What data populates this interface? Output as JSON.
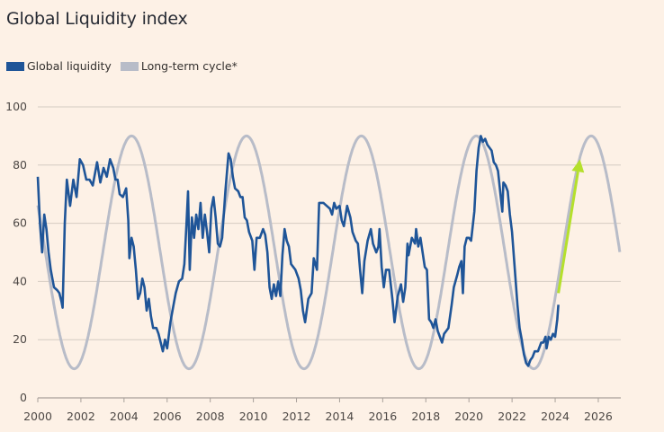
{
  "chart_data": {
    "type": "line",
    "title": "Global Liquidity index",
    "xlabel": "",
    "ylabel": "",
    "xlim": [
      2000,
      2027
    ],
    "ylim": [
      0,
      100
    ],
    "grid": true,
    "legend_position": "top-left",
    "x_ticks": [
      "2000",
      "2002",
      "2004",
      "2006",
      "2008",
      "2010",
      "2012",
      "2014",
      "2016",
      "2018",
      "2020",
      "2022",
      "2024",
      "2026"
    ],
    "y_ticks": [
      "0",
      "20",
      "40",
      "60",
      "80",
      "100"
    ],
    "colors": {
      "liquidity": "#1f5598",
      "cycle": "#b8bcc8",
      "arrow": "#b5e02c",
      "grid": "#d4cbc2",
      "axis": "#a8a09a"
    },
    "series": [
      {
        "name": "Global liquidity",
        "points": [
          [
            2000.0,
            76
          ],
          [
            2000.1,
            60
          ],
          [
            2000.2,
            50
          ],
          [
            2000.3,
            63
          ],
          [
            2000.4,
            58
          ],
          [
            2000.5,
            50
          ],
          [
            2000.6,
            44
          ],
          [
            2000.75,
            38
          ],
          [
            2000.9,
            37
          ],
          [
            2001.0,
            36
          ],
          [
            2001.1,
            33
          ],
          [
            2001.15,
            31
          ],
          [
            2001.25,
            60
          ],
          [
            2001.35,
            75
          ],
          [
            2001.5,
            66
          ],
          [
            2001.65,
            75
          ],
          [
            2001.8,
            69
          ],
          [
            2001.95,
            82
          ],
          [
            2002.1,
            80
          ],
          [
            2002.25,
            75
          ],
          [
            2002.4,
            75
          ],
          [
            2002.55,
            73
          ],
          [
            2002.75,
            81
          ],
          [
            2002.9,
            74
          ],
          [
            2003.05,
            79
          ],
          [
            2003.2,
            76
          ],
          [
            2003.35,
            82
          ],
          [
            2003.5,
            79
          ],
          [
            2003.6,
            75
          ],
          [
            2003.7,
            75
          ],
          [
            2003.8,
            70
          ],
          [
            2003.95,
            69
          ],
          [
            2004.1,
            72
          ],
          [
            2004.2,
            61
          ],
          [
            2004.25,
            48
          ],
          [
            2004.35,
            55
          ],
          [
            2004.45,
            52
          ],
          [
            2004.55,
            44
          ],
          [
            2004.65,
            34
          ],
          [
            2004.75,
            36
          ],
          [
            2004.85,
            41
          ],
          [
            2004.95,
            38
          ],
          [
            2005.05,
            30
          ],
          [
            2005.15,
            34
          ],
          [
            2005.25,
            28
          ],
          [
            2005.35,
            24
          ],
          [
            2005.5,
            24
          ],
          [
            2005.6,
            22
          ],
          [
            2005.7,
            19
          ],
          [
            2005.8,
            16
          ],
          [
            2005.9,
            20
          ],
          [
            2006.0,
            17
          ],
          [
            2006.15,
            26
          ],
          [
            2006.3,
            32
          ],
          [
            2006.4,
            36
          ],
          [
            2006.55,
            40
          ],
          [
            2006.7,
            41
          ],
          [
            2006.8,
            46
          ],
          [
            2006.9,
            60
          ],
          [
            2006.97,
            71
          ],
          [
            2007.05,
            44
          ],
          [
            2007.15,
            62
          ],
          [
            2007.25,
            55
          ],
          [
            2007.35,
            63
          ],
          [
            2007.45,
            58
          ],
          [
            2007.55,
            67
          ],
          [
            2007.65,
            55
          ],
          [
            2007.75,
            63
          ],
          [
            2007.85,
            57
          ],
          [
            2007.95,
            50
          ],
          [
            2008.05,
            65
          ],
          [
            2008.15,
            69
          ],
          [
            2008.25,
            62
          ],
          [
            2008.35,
            53
          ],
          [
            2008.45,
            52
          ],
          [
            2008.55,
            55
          ],
          [
            2008.7,
            71
          ],
          [
            2008.85,
            84
          ],
          [
            2008.95,
            82
          ],
          [
            2009.05,
            76
          ],
          [
            2009.15,
            72
          ],
          [
            2009.3,
            71
          ],
          [
            2009.4,
            69
          ],
          [
            2009.5,
            69
          ],
          [
            2009.6,
            62
          ],
          [
            2009.7,
            61
          ],
          [
            2009.8,
            57
          ],
          [
            2009.95,
            54
          ],
          [
            2010.05,
            44
          ],
          [
            2010.15,
            55
          ],
          [
            2010.3,
            55
          ],
          [
            2010.45,
            58
          ],
          [
            2010.55,
            56
          ],
          [
            2010.65,
            50
          ],
          [
            2010.75,
            38
          ],
          [
            2010.85,
            34
          ],
          [
            2010.95,
            39
          ],
          [
            2011.05,
            35
          ],
          [
            2011.15,
            40
          ],
          [
            2011.25,
            35
          ],
          [
            2011.35,
            49
          ],
          [
            2011.45,
            58
          ],
          [
            2011.55,
            54
          ],
          [
            2011.65,
            52
          ],
          [
            2011.75,
            46
          ],
          [
            2011.85,
            45
          ],
          [
            2011.95,
            44
          ],
          [
            2012.1,
            41
          ],
          [
            2012.2,
            37
          ],
          [
            2012.3,
            30
          ],
          [
            2012.4,
            26
          ],
          [
            2012.55,
            34
          ],
          [
            2012.7,
            36
          ],
          [
            2012.8,
            48
          ],
          [
            2012.95,
            44
          ],
          [
            2013.05,
            67
          ],
          [
            2013.25,
            67
          ],
          [
            2013.4,
            66
          ],
          [
            2013.55,
            65
          ],
          [
            2013.65,
            63
          ],
          [
            2013.75,
            67
          ],
          [
            2013.85,
            65
          ],
          [
            2014.0,
            66
          ],
          [
            2014.1,
            61
          ],
          [
            2014.2,
            59
          ],
          [
            2014.35,
            66
          ],
          [
            2014.5,
            62
          ],
          [
            2014.6,
            57
          ],
          [
            2014.75,
            54
          ],
          [
            2014.85,
            53
          ],
          [
            2014.95,
            44
          ],
          [
            2015.05,
            36
          ],
          [
            2015.15,
            47
          ],
          [
            2015.3,
            54
          ],
          [
            2015.45,
            58
          ],
          [
            2015.55,
            53
          ],
          [
            2015.7,
            50
          ],
          [
            2015.8,
            52
          ],
          [
            2015.85,
            58
          ],
          [
            2015.95,
            45
          ],
          [
            2016.05,
            38
          ],
          [
            2016.15,
            44
          ],
          [
            2016.3,
            44
          ],
          [
            2016.45,
            34
          ],
          [
            2016.55,
            26
          ],
          [
            2016.7,
            35
          ],
          [
            2016.85,
            39
          ],
          [
            2016.95,
            33
          ],
          [
            2017.05,
            38
          ],
          [
            2017.15,
            53
          ],
          [
            2017.2,
            49
          ],
          [
            2017.35,
            55
          ],
          [
            2017.5,
            53
          ],
          [
            2017.55,
            58
          ],
          [
            2017.65,
            52
          ],
          [
            2017.75,
            55
          ],
          [
            2017.85,
            50
          ],
          [
            2017.95,
            45
          ],
          [
            2018.05,
            44
          ],
          [
            2018.15,
            27
          ],
          [
            2018.25,
            26
          ],
          [
            2018.35,
            24
          ],
          [
            2018.45,
            27
          ],
          [
            2018.55,
            23
          ],
          [
            2018.65,
            21
          ],
          [
            2018.75,
            19
          ],
          [
            2018.85,
            22
          ],
          [
            2018.95,
            23
          ],
          [
            2019.05,
            24
          ],
          [
            2019.2,
            32
          ],
          [
            2019.3,
            38
          ],
          [
            2019.45,
            42
          ],
          [
            2019.55,
            45
          ],
          [
            2019.65,
            47
          ],
          [
            2019.72,
            36
          ],
          [
            2019.8,
            52
          ],
          [
            2019.9,
            55
          ],
          [
            2020.0,
            55
          ],
          [
            2020.1,
            54
          ],
          [
            2020.25,
            64
          ],
          [
            2020.35,
            78
          ],
          [
            2020.45,
            86
          ],
          [
            2020.55,
            90
          ],
          [
            2020.65,
            88
          ],
          [
            2020.75,
            89
          ],
          [
            2020.85,
            87
          ],
          [
            2020.95,
            86
          ],
          [
            2021.05,
            85
          ],
          [
            2021.15,
            81
          ],
          [
            2021.25,
            80
          ],
          [
            2021.35,
            78
          ],
          [
            2021.45,
            71
          ],
          [
            2021.55,
            64
          ],
          [
            2021.6,
            74
          ],
          [
            2021.7,
            73
          ],
          [
            2021.8,
            71
          ],
          [
            2021.9,
            63
          ],
          [
            2022.0,
            57
          ],
          [
            2022.15,
            42
          ],
          [
            2022.25,
            32
          ],
          [
            2022.35,
            24
          ],
          [
            2022.45,
            20
          ],
          [
            2022.55,
            15
          ],
          [
            2022.65,
            12
          ],
          [
            2022.75,
            11
          ],
          [
            2022.85,
            13
          ],
          [
            2022.95,
            14
          ],
          [
            2023.05,
            16
          ],
          [
            2023.2,
            16
          ],
          [
            2023.35,
            19
          ],
          [
            2023.45,
            19
          ],
          [
            2023.55,
            21
          ],
          [
            2023.6,
            17
          ],
          [
            2023.7,
            21
          ],
          [
            2023.8,
            20
          ],
          [
            2023.9,
            22
          ],
          [
            2024.0,
            21
          ],
          [
            2024.1,
            27
          ],
          [
            2024.15,
            32
          ]
        ]
      },
      {
        "name": "Long-term cycle*",
        "function": "sine",
        "min": 10,
        "max": 90,
        "period_years": 5.33,
        "first_peak_year": 2004.35,
        "x_range": [
          2000,
          2027
        ]
      }
    ],
    "annotations": [
      {
        "type": "arrow",
        "from": [
          2024.15,
          36
        ],
        "to": [
          2025.15,
          82
        ],
        "color": "#b5e02c"
      }
    ]
  },
  "legend": {
    "items": [
      {
        "label": "Global liquidity",
        "color": "#1f5598"
      },
      {
        "label": "Long-term cycle*",
        "color": "#b8bcc8"
      }
    ]
  }
}
